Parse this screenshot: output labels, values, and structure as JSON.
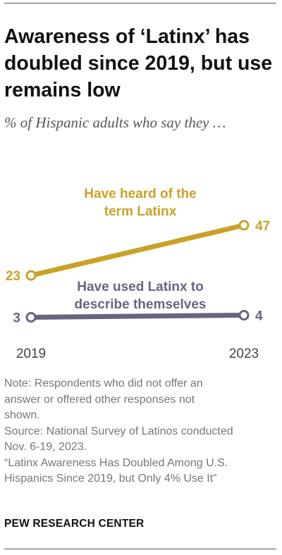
{
  "header": {
    "title": "Awareness of ‘Latinx’ has doubled since 2019, but use remains low",
    "subtitle": "% of Hispanic adults who say they …"
  },
  "chart_data": {
    "type": "line",
    "x": [
      "2019",
      "2023"
    ],
    "series": [
      {
        "name": "Have heard of the term Latinx",
        "values": [
          23,
          47
        ],
        "color": "#c9a227"
      },
      {
        "name": "Have used Latinx to describe themselves",
        "values": [
          3,
          4
        ],
        "color": "#6b6480"
      }
    ],
    "title": "Awareness of ‘Latinx’ has doubled since 2019, but use remains low",
    "subtitle": "% of Hispanic adults who say they …",
    "grid": false
  },
  "series_labels": {
    "heard": [
      "Have heard of the",
      "term Latinx"
    ],
    "used": [
      "Have used Latinx to",
      "describe themselves"
    ]
  },
  "footer": {
    "note_lines": [
      "Note: Respondents who did not offer an",
      "answer or offered other responses not",
      "shown.",
      "Source: National Survey of Latinos conducted",
      "Nov. 6-19, 2023.",
      "“Latinx Awareness Has Doubled Among U.S.",
      "Hispanics Since 2019, but Only 4% Use It”"
    ],
    "org": "PEW RESEARCH CENTER"
  }
}
